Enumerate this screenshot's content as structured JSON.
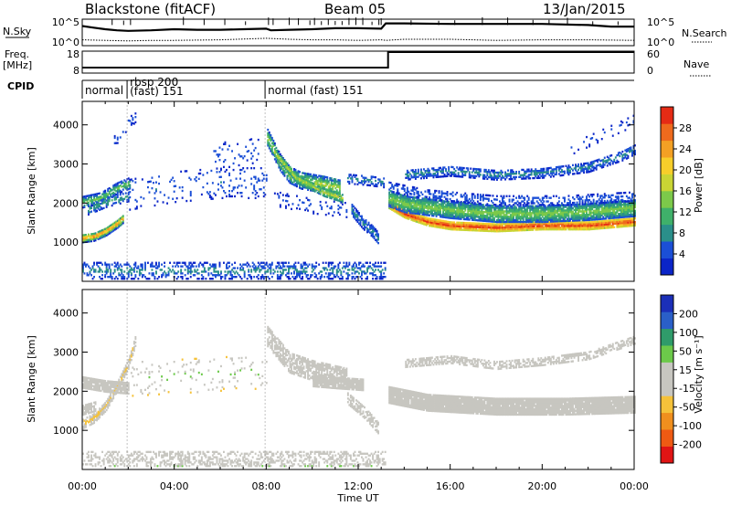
{
  "header": {
    "station": "Blackstone (fitACF)",
    "beam": "Beam 05",
    "date": "13/Jan/2015"
  },
  "noise_panel": {
    "left_label": "N.Sky",
    "left_ticks": [
      "10^5",
      "10^0"
    ],
    "right_ticks": [
      "10^5",
      "10^0"
    ],
    "right_label": "N.Search",
    "search_trace": [
      [
        0,
        0.74
      ],
      [
        0.5,
        0.68
      ],
      [
        1,
        0.62
      ],
      [
        1.5,
        0.58
      ],
      [
        2,
        0.56
      ],
      [
        3,
        0.58
      ],
      [
        4,
        0.62
      ],
      [
        5,
        0.6
      ],
      [
        6,
        0.6
      ],
      [
        7,
        0.62
      ],
      [
        8,
        0.64
      ],
      [
        8.2,
        0.58
      ],
      [
        9,
        0.6
      ],
      [
        10,
        0.62
      ],
      [
        11,
        0.66
      ],
      [
        12,
        0.66
      ],
      [
        13,
        0.64
      ],
      [
        13.2,
        0.84
      ],
      [
        14,
        0.84
      ],
      [
        16,
        0.82
      ],
      [
        18,
        0.82
      ],
      [
        20,
        0.82
      ],
      [
        22,
        0.78
      ],
      [
        23,
        0.72
      ],
      [
        24,
        0.72
      ]
    ],
    "sky_trace": [
      [
        0,
        0.22
      ],
      [
        1,
        0.2
      ],
      [
        2,
        0.18
      ],
      [
        3,
        0.2
      ],
      [
        4,
        0.2
      ],
      [
        6,
        0.22
      ],
      [
        8,
        0.28
      ],
      [
        9,
        0.24
      ],
      [
        10,
        0.22
      ],
      [
        11,
        0.22
      ],
      [
        12,
        0.2
      ],
      [
        13,
        0.22
      ],
      [
        13.2,
        0.2
      ],
      [
        14,
        0.24
      ],
      [
        16,
        0.24
      ],
      [
        18,
        0.2
      ],
      [
        20,
        0.22
      ],
      [
        22,
        0.22
      ],
      [
        24,
        0.2
      ]
    ],
    "spikes": [
      1.3,
      1.8,
      2.1,
      4.4,
      5.3,
      6.2,
      7.1,
      8.1,
      8.3,
      9.0,
      9.4,
      9.9,
      10.1,
      10.4,
      10.7,
      11.0,
      11.3,
      11.6,
      11.9,
      12.2,
      12.6,
      12.9,
      13.0,
      14.3,
      15.5,
      16.2,
      17.4,
      18.5,
      19.6,
      20.3,
      21.1,
      22.2,
      23.3
    ]
  },
  "freq_panel": {
    "left_label": "Freq.",
    "left_unit": "[MHz]",
    "left_ticks": [
      "18",
      "8"
    ],
    "right_ticks": [
      "60",
      "0"
    ],
    "right_label": "Nave",
    "freq_trace": [
      [
        0,
        10.5
      ],
      [
        13.3,
        10.5
      ],
      [
        13.3,
        18
      ],
      [
        24,
        18
      ]
    ],
    "nave_trace": [
      [
        0,
        0.1
      ],
      [
        24,
        0.1
      ]
    ]
  },
  "cpid": {
    "label": "CPID",
    "segments": [
      {
        "start": 0,
        "label": "normal"
      },
      {
        "start": 1.95,
        "label": "rbsp 200"
      },
      {
        "start": 1.95,
        "label": "(fast) 151"
      },
      {
        "start": 7.95,
        "label": "normal (fast)  151"
      }
    ]
  },
  "chart_data": [
    {
      "type": "heatmap",
      "name": "power",
      "xlabel": "",
      "ylabel": "Slant Range [km]",
      "xlim": [
        0,
        24
      ],
      "ylim": [
        0,
        4600
      ],
      "yticks": [
        1000,
        2000,
        3000,
        4000
      ],
      "colorbar": {
        "label": "Power [dB]",
        "ticks": [
          4,
          8,
          12,
          16,
          20,
          24,
          28
        ],
        "range": [
          0,
          32
        ]
      },
      "features": [
        {
          "desc": "band",
          "points": [
            [
              0,
              1080
            ],
            [
              0.5,
              1120
            ],
            [
              1,
              1250
            ],
            [
              1.5,
              1450
            ],
            [
              1.8,
              1600
            ]
          ],
          "width": 220,
          "vmax": 26,
          "vmin": 4,
          "density": 0.95
        },
        {
          "desc": "band",
          "points": [
            [
              0,
              2000
            ],
            [
              0.8,
              2100
            ],
            [
              1.5,
              2350
            ],
            [
              2.1,
              2500
            ]
          ],
          "width": 280,
          "vmax": 14,
          "vmin": 3,
          "density": 0.7
        },
        {
          "desc": "band",
          "points": [
            [
              0.2,
              1800
            ],
            [
              1,
              2000
            ],
            [
              2,
              2150
            ]
          ],
          "width": 260,
          "vmax": 10,
          "vmin": 3,
          "density": 0.5
        },
        {
          "desc": "band",
          "points": [
            [
              2,
              2200
            ],
            [
              4,
              2400
            ],
            [
              6,
              2500
            ],
            [
              8,
              2500
            ]
          ],
          "width": 800,
          "vmax": 6,
          "vmin": 2,
          "density": 0.08
        },
        {
          "desc": "band",
          "points": [
            [
              1.3,
              3500
            ],
            [
              1.8,
              3900
            ],
            [
              2.3,
              4200
            ]
          ],
          "width": 300,
          "vmax": 5,
          "vmin": 2,
          "density": 0.18
        },
        {
          "desc": "band",
          "points": [
            [
              5.5,
              3200
            ],
            [
              7,
              3200
            ],
            [
              7.8,
              3400
            ]
          ],
          "width": 700,
          "vmax": 5,
          "vmin": 2,
          "density": 0.08
        },
        {
          "desc": "band",
          "points": [
            [
              8,
              3700
            ],
            [
              8.6,
              3000
            ],
            [
              9,
              2700
            ],
            [
              9.5,
              2550
            ],
            [
              10.5,
              2450
            ],
            [
              11.2,
              2350
            ]
          ],
          "width": 420,
          "vmax": 17,
          "vmin": 4,
          "density": 0.75
        },
        {
          "desc": "band",
          "points": [
            [
              8.3,
              3300
            ],
            [
              9.3,
              2600
            ],
            [
              10.5,
              2250
            ],
            [
              11.3,
              2100
            ]
          ],
          "width": 200,
          "vmax": 18,
          "vmin": 8,
          "density": 0.8
        },
        {
          "desc": "band",
          "points": [
            [
              8.3,
              2100
            ],
            [
              10,
              1900
            ],
            [
              11.5,
              1800
            ]
          ],
          "width": 380,
          "vmax": 5,
          "vmin": 2,
          "density": 0.15
        },
        {
          "desc": "band",
          "points": [
            [
              11.5,
              2600
            ],
            [
              12.5,
              2550
            ],
            [
              13.1,
              2500
            ]
          ],
          "width": 250,
          "vmax": 8,
          "vmin": 2,
          "density": 0.45
        },
        {
          "desc": "band",
          "points": [
            [
              11.7,
              1800
            ],
            [
              12.2,
              1450
            ],
            [
              12.6,
              1250
            ],
            [
              12.9,
              1050
            ]
          ],
          "width": 280,
          "vmax": 8,
          "vmin": 3,
          "density": 0.7
        },
        {
          "desc": "band",
          "points": [
            [
              13.3,
              1950
            ],
            [
              14,
              1700
            ],
            [
              15,
              1500
            ],
            [
              16,
              1400
            ],
            [
              18,
              1350
            ],
            [
              20,
              1400
            ],
            [
              22,
              1400
            ],
            [
              24,
              1500
            ]
          ],
          "width": 200,
          "vmax": 30,
          "vmin": 18,
          "density": 0.98
        },
        {
          "desc": "band",
          "points": [
            [
              13.3,
              2100
            ],
            [
              14,
              1950
            ],
            [
              16,
              1800
            ],
            [
              18,
              1700
            ],
            [
              20,
              1700
            ],
            [
              22,
              1750
            ],
            [
              24,
              1850
            ]
          ],
          "width": 420,
          "vmax": 15,
          "vmin": 5,
          "density": 0.9
        },
        {
          "desc": "band",
          "points": [
            [
              13.3,
              2400
            ],
            [
              15,
              2200
            ],
            [
              18,
              2050
            ],
            [
              21,
              2050
            ],
            [
              24,
              2150
            ]
          ],
          "width": 250,
          "vmax": 6,
          "vmin": 2,
          "density": 0.35
        },
        {
          "desc": "band",
          "points": [
            [
              14,
              2700
            ],
            [
              16,
              2800
            ],
            [
              18,
              2700
            ],
            [
              20,
              2750
            ],
            [
              22,
              2900
            ],
            [
              23.5,
              3200
            ],
            [
              24,
              3350
            ]
          ],
          "width": 260,
          "vmax": 8,
          "vmin": 2,
          "density": 0.55
        },
        {
          "desc": "band",
          "points": [
            [
              21,
              3300
            ],
            [
              22.5,
              3700
            ],
            [
              24,
              4100
            ]
          ],
          "width": 300,
          "vmax": 4,
          "vmin": 2,
          "density": 0.1
        },
        {
          "desc": "ground",
          "points": [
            [
              0,
              250
            ],
            [
              24,
              250
            ]
          ],
          "width": 420,
          "vmax": 8,
          "vmin": 2,
          "density": 0.35,
          "tmax": 13.2
        }
      ]
    },
    {
      "type": "heatmap",
      "name": "velocity",
      "xlabel": "Time UT",
      "ylabel": "Slant Range [km]",
      "xlim": [
        0,
        24
      ],
      "ylim": [
        0,
        4600
      ],
      "xticks": [
        "00:00",
        "04:00",
        "08:00",
        "12:00",
        "16:00",
        "20:00",
        "00:00"
      ],
      "yticks": [
        1000,
        2000,
        3000,
        4000
      ],
      "colorbar": {
        "label": "Velocity [m s⁻¹]",
        "ticks": [
          200,
          100,
          50,
          15,
          -15,
          -50,
          -100,
          -200
        ],
        "range": [
          -250,
          250
        ]
      },
      "features": [
        {
          "desc": "band",
          "points": [
            [
              0,
              1150
            ],
            [
              0.5,
              1300
            ],
            [
              1,
              1600
            ],
            [
              1.5,
              2100
            ],
            [
              2,
              2700
            ],
            [
              2.3,
              3300
            ]
          ],
          "width": 260,
          "vmax": -60,
          "vmin": -20,
          "density": 0.8
        },
        {
          "desc": "band",
          "points": [
            [
              0,
              2200
            ],
            [
              1,
              2100
            ],
            [
              2,
              2050
            ]
          ],
          "width": 280,
          "vmax": 10,
          "vmin": -10,
          "density": 0.9
        },
        {
          "desc": "band",
          "points": [
            [
              0,
              1500
            ],
            [
              0.6,
              1600
            ]
          ],
          "width": 250,
          "vmax": 10,
          "vmin": -10,
          "density": 0.85
        },
        {
          "desc": "band",
          "points": [
            [
              8,
              3400
            ],
            [
              9,
              2700
            ],
            [
              10,
              2500
            ],
            [
              11.5,
              2300
            ]
          ],
          "width": 500,
          "vmax": 10,
          "vmin": -10,
          "density": 0.7
        },
        {
          "desc": "band",
          "points": [
            [
              10,
              2250
            ],
            [
              11,
              2200
            ],
            [
              12.2,
              2150
            ]
          ],
          "width": 300,
          "vmax": 12,
          "vmin": -12,
          "density": 0.85
        },
        {
          "desc": "band",
          "points": [
            [
              11.5,
              1800
            ],
            [
              12.3,
              1400
            ],
            [
              12.9,
              1000
            ]
          ],
          "width": 280,
          "vmax": 40,
          "vmin": 20,
          "density": 0.6
        },
        {
          "desc": "band",
          "points": [
            [
              13.3,
              1900
            ],
            [
              15,
              1700
            ],
            [
              18,
              1600
            ],
            [
              21,
              1600
            ],
            [
              24,
              1650
            ]
          ],
          "width": 450,
          "vmax": 12,
          "vmin": -12,
          "density": 0.97
        },
        {
          "desc": "band",
          "points": [
            [
              14,
              2700
            ],
            [
              16,
              2800
            ],
            [
              18,
              2650
            ],
            [
              20,
              2750
            ],
            [
              22,
              2900
            ],
            [
              24,
              3300
            ]
          ],
          "width": 220,
          "vmax": 12,
          "vmin": -12,
          "density": 0.55
        },
        {
          "desc": "band",
          "points": [
            [
              2,
              2300
            ],
            [
              5,
              2400
            ],
            [
              8,
              2500
            ]
          ],
          "width": 900,
          "vmax": 60,
          "vmin": -60,
          "density": 0.05
        },
        {
          "desc": "ground",
          "points": [
            [
              0,
              250
            ],
            [
              24,
              250
            ]
          ],
          "width": 380,
          "vmax": -40,
          "vmin": 40,
          "density": 0.4,
          "tmax": 13.2
        }
      ]
    }
  ]
}
